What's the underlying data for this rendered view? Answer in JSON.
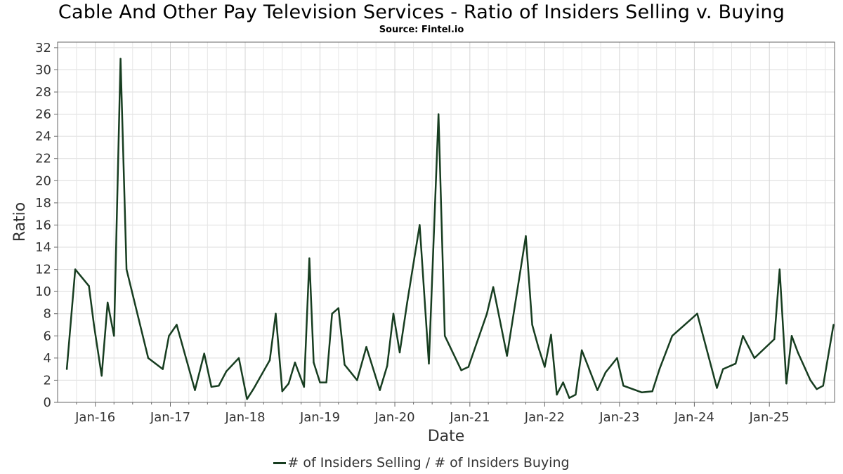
{
  "chart_data": {
    "type": "line",
    "title": "Cable And Other Pay Television Services - Ratio of Insiders Selling v. Buying",
    "subtitle": "Source: Fintel.io",
    "xlabel": "Date",
    "ylabel": "Ratio",
    "x_range": [
      "2015-07-01",
      "2025-11-15"
    ],
    "ylim": [
      0,
      32.5
    ],
    "y_ticks": [
      0,
      2,
      4,
      6,
      8,
      10,
      12,
      14,
      16,
      18,
      20,
      22,
      24,
      26,
      28,
      30,
      32
    ],
    "x_ticks": [
      {
        "date": "2016-01-01",
        "label": "Jan-16"
      },
      {
        "date": "2017-01-01",
        "label": "Jan-17"
      },
      {
        "date": "2018-01-01",
        "label": "Jan-18"
      },
      {
        "date": "2019-01-01",
        "label": "Jan-19"
      },
      {
        "date": "2020-01-01",
        "label": "Jan-20"
      },
      {
        "date": "2021-01-01",
        "label": "Jan-21"
      },
      {
        "date": "2022-01-01",
        "label": "Jan-22"
      },
      {
        "date": "2023-01-01",
        "label": "Jan-23"
      },
      {
        "date": "2024-01-01",
        "label": "Jan-24"
      },
      {
        "date": "2025-01-01",
        "label": "Jan-25"
      }
    ],
    "grid": true,
    "legend_position": "bottom-center",
    "color": "#173d20",
    "series": [
      {
        "name": "# of Insiders Selling / # of Insiders Buying",
        "points": [
          [
            "2015-08-15",
            3.0
          ],
          [
            "2015-09-25",
            12.0
          ],
          [
            "2015-12-01",
            10.5
          ],
          [
            "2015-12-25",
            7.0
          ],
          [
            "2016-02-01",
            2.4
          ],
          [
            "2016-03-01",
            9.0
          ],
          [
            "2016-04-01",
            6.0
          ],
          [
            "2016-05-03",
            31.0
          ],
          [
            "2016-06-01",
            12.0
          ],
          [
            "2016-09-15",
            4.0
          ],
          [
            "2016-11-25",
            3.0
          ],
          [
            "2016-12-25",
            6.0
          ],
          [
            "2017-02-01",
            7.0
          ],
          [
            "2017-05-01",
            1.1
          ],
          [
            "2017-06-15",
            4.4
          ],
          [
            "2017-07-20",
            1.4
          ],
          [
            "2017-08-25",
            1.5
          ],
          [
            "2017-10-01",
            2.8
          ],
          [
            "2017-12-01",
            4.0
          ],
          [
            "2018-01-10",
            0.3
          ],
          [
            "2018-02-10",
            1.2
          ],
          [
            "2018-05-01",
            3.8
          ],
          [
            "2018-05-30",
            8.0
          ],
          [
            "2018-07-01",
            1.0
          ],
          [
            "2018-08-01",
            1.7
          ],
          [
            "2018-09-01",
            3.6
          ],
          [
            "2018-10-15",
            1.4
          ],
          [
            "2018-11-10",
            13.0
          ],
          [
            "2018-12-01",
            3.6
          ],
          [
            "2019-01-01",
            1.8
          ],
          [
            "2019-02-01",
            1.8
          ],
          [
            "2019-03-01",
            8.0
          ],
          [
            "2019-04-01",
            8.5
          ],
          [
            "2019-05-01",
            3.4
          ],
          [
            "2019-07-01",
            2.0
          ],
          [
            "2019-08-15",
            5.0
          ],
          [
            "2019-10-20",
            1.1
          ],
          [
            "2019-11-25",
            3.3
          ],
          [
            "2019-12-25",
            8.0
          ],
          [
            "2020-01-25",
            4.5
          ],
          [
            "2020-03-01",
            9.0
          ],
          [
            "2020-05-01",
            16.0
          ],
          [
            "2020-06-15",
            3.5
          ],
          [
            "2020-08-01",
            26.0
          ],
          [
            "2020-09-01",
            6.0
          ],
          [
            "2020-11-20",
            2.9
          ],
          [
            "2020-12-25",
            3.2
          ],
          [
            "2021-03-25",
            8.0
          ],
          [
            "2021-04-25",
            10.4
          ],
          [
            "2021-06-01",
            7.0
          ],
          [
            "2021-07-01",
            4.2
          ],
          [
            "2021-10-01",
            15.0
          ],
          [
            "2021-11-01",
            7.0
          ],
          [
            "2021-12-01",
            5.0
          ],
          [
            "2022-01-01",
            3.2
          ],
          [
            "2022-02-01",
            6.1
          ],
          [
            "2022-03-01",
            0.7
          ],
          [
            "2022-04-01",
            1.8
          ],
          [
            "2022-05-01",
            0.4
          ],
          [
            "2022-06-01",
            0.7
          ],
          [
            "2022-07-01",
            4.7
          ],
          [
            "2022-09-15",
            1.1
          ],
          [
            "2022-10-25",
            2.7
          ],
          [
            "2022-12-20",
            4.0
          ],
          [
            "2023-01-20",
            1.5
          ],
          [
            "2023-04-20",
            0.9
          ],
          [
            "2023-06-10",
            1.0
          ],
          [
            "2023-07-15",
            3.0
          ],
          [
            "2023-09-15",
            6.0
          ],
          [
            "2024-01-15",
            8.0
          ],
          [
            "2024-04-20",
            1.3
          ],
          [
            "2024-05-20",
            3.0
          ],
          [
            "2024-07-20",
            3.5
          ],
          [
            "2024-08-25",
            6.0
          ],
          [
            "2024-10-20",
            4.0
          ],
          [
            "2025-01-25",
            5.7
          ],
          [
            "2025-02-20",
            12.0
          ],
          [
            "2025-03-25",
            1.7
          ],
          [
            "2025-04-20",
            6.0
          ],
          [
            "2025-05-20",
            4.5
          ],
          [
            "2025-07-20",
            2.0
          ],
          [
            "2025-08-20",
            1.2
          ],
          [
            "2025-09-20",
            1.5
          ],
          [
            "2025-11-10",
            7.0
          ]
        ]
      }
    ]
  }
}
